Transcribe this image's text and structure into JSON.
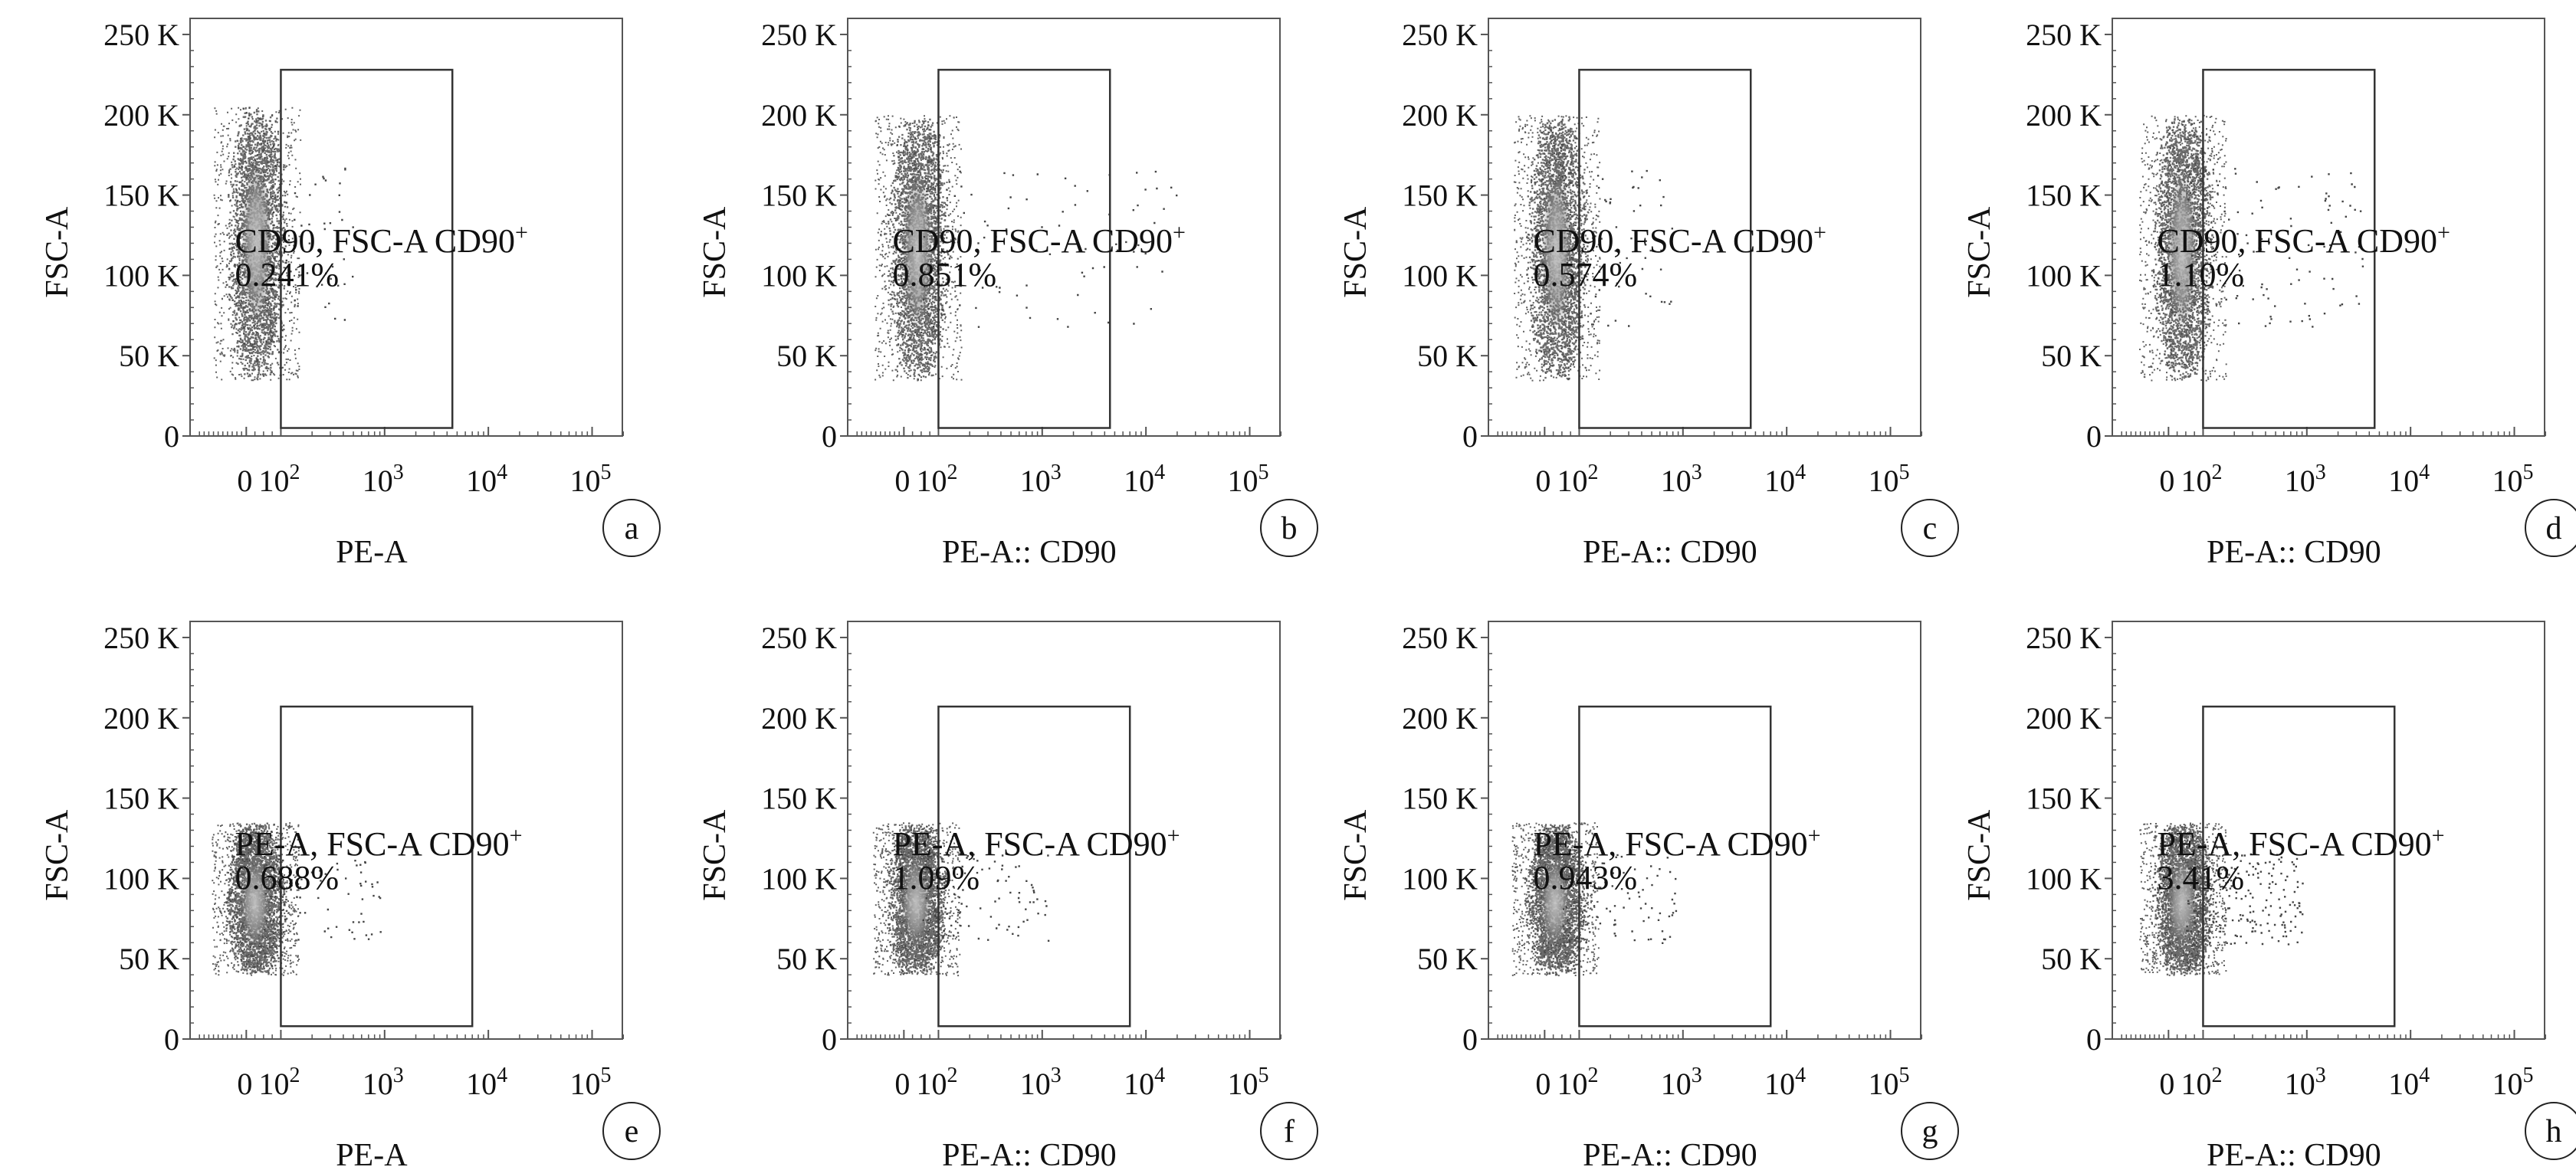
{
  "chart_data": [
    {
      "type": "scatter",
      "panel": "a",
      "letter": "a",
      "title": "",
      "xlabel": "PE-A",
      "ylabel": "FSC-A",
      "gate_label": "CD90, FSC-A CD90",
      "gate_sup": "+",
      "gate_percent": "0.241%",
      "gate_x": [
        100,
        4500
      ],
      "gate_y": [
        5000,
        228000
      ],
      "population": {
        "x_center": 30,
        "x_spread": 1.9,
        "y_range": [
          35000,
          205000
        ],
        "y_center": 120000,
        "sparse_points": 60,
        "tail_max": 500
      }
    },
    {
      "type": "scatter",
      "panel": "b",
      "letter": "b",
      "title": "",
      "xlabel": "PE-A:: CD90",
      "ylabel": "FSC-A",
      "gate_label": "CD90, FSC-A CD90",
      "gate_sup": "+",
      "gate_percent": "0.851%",
      "gate_x": [
        100,
        4500
      ],
      "gate_y": [
        5000,
        228000
      ],
      "population": {
        "x_center": 40,
        "x_spread": 2.2,
        "y_range": [
          35000,
          200000
        ],
        "y_center": 115000,
        "sparse_points": 90,
        "tail_max": 20000
      }
    },
    {
      "type": "scatter",
      "panel": "c",
      "letter": "c",
      "title": "",
      "xlabel": "PE-A:: CD90",
      "ylabel": "FSC-A",
      "gate_label": "CD90, FSC-A CD90",
      "gate_sup": "+",
      "gate_percent": "0.574%",
      "gate_x": [
        100,
        4500
      ],
      "gate_y": [
        5000,
        228000
      ],
      "population": {
        "x_center": 35,
        "x_spread": 2.0,
        "y_range": [
          35000,
          200000
        ],
        "y_center": 115000,
        "sparse_points": 70,
        "tail_max": 800
      }
    },
    {
      "type": "scatter",
      "panel": "d",
      "letter": "d",
      "title": "",
      "xlabel": "PE-A:: CD90",
      "ylabel": "FSC-A",
      "gate_label": "CD90, FSC-A CD90",
      "gate_sup": "+",
      "gate_percent": "1.10%",
      "gate_x": [
        100,
        4500
      ],
      "gate_y": [
        5000,
        228000
      ],
      "population": {
        "x_center": 40,
        "x_spread": 2.3,
        "y_range": [
          35000,
          200000
        ],
        "y_center": 115000,
        "sparse_points": 110,
        "tail_max": 3500
      }
    },
    {
      "type": "scatter",
      "panel": "e",
      "letter": "e",
      "title": "",
      "xlabel": "PE-A",
      "ylabel": "FSC-A",
      "gate_label": "PE-A, FSC-A CD90",
      "gate_sup": "+",
      "gate_percent": "0.688%",
      "gate_x": [
        100,
        7000
      ],
      "gate_y": [
        8000,
        207000
      ],
      "population": {
        "x_center": 25,
        "x_spread": 1.8,
        "y_range": [
          40000,
          135000
        ],
        "y_center": 85000,
        "sparse_points": 80,
        "tail_max": 900
      }
    },
    {
      "type": "scatter",
      "panel": "f",
      "letter": "f",
      "title": "",
      "xlabel": "PE-A:: CD90",
      "ylabel": "FSC-A",
      "gate_label": "PE-A, FSC-A CD90",
      "gate_sup": "+",
      "gate_percent": "1.09%",
      "gate_x": [
        100,
        7000
      ],
      "gate_y": [
        8000,
        207000
      ],
      "population": {
        "x_center": 35,
        "x_spread": 2.1,
        "y_range": [
          40000,
          135000
        ],
        "y_center": 85000,
        "sparse_points": 110,
        "tail_max": 1200
      }
    },
    {
      "type": "scatter",
      "panel": "g",
      "letter": "g",
      "title": "",
      "xlabel": "PE-A:: CD90",
      "ylabel": "FSC-A",
      "gate_label": "PE-A, FSC-A CD90",
      "gate_sup": "+",
      "gate_percent": "0.943%",
      "gate_x": [
        100,
        7000
      ],
      "gate_y": [
        8000,
        207000
      ],
      "population": {
        "x_center": 30,
        "x_spread": 2.0,
        "y_range": [
          40000,
          135000
        ],
        "y_center": 85000,
        "sparse_points": 90,
        "tail_max": 900
      }
    },
    {
      "type": "scatter",
      "panel": "h",
      "letter": "h",
      "title": "",
      "xlabel": "PE-A:: CD90",
      "ylabel": "FSC-A",
      "gate_label": "PE-A, FSC-A CD90",
      "gate_sup": "+",
      "gate_percent": "3.41%",
      "gate_x": [
        100,
        7000
      ],
      "gate_y": [
        8000,
        207000
      ],
      "population": {
        "x_center": 40,
        "x_spread": 2.5,
        "y_range": [
          40000,
          135000
        ],
        "y_center": 85000,
        "sparse_points": 220,
        "tail_max": 900
      }
    }
  ],
  "axes": {
    "y_ticks": [
      0,
      50000,
      100000,
      150000,
      200000,
      250000
    ],
    "y_tick_labels": [
      "0",
      "50 K",
      "100 K",
      "150 K",
      "200 K",
      "250 K"
    ],
    "y_range": [
      0,
      260000
    ],
    "x_scale": "biexponential",
    "x_ticks": [
      0,
      100,
      1000,
      10000,
      100000
    ],
    "x_tick_labels": [
      {
        "base": "0",
        "exp": ""
      },
      {
        "base": "10",
        "exp": "2"
      },
      {
        "base": "10",
        "exp": "3"
      },
      {
        "base": "10",
        "exp": "4"
      },
      {
        "base": "10",
        "exp": "5"
      }
    ],
    "grid": false
  },
  "colors": {
    "frame": "#555555",
    "gate": "#333333",
    "dots_sparse": "#444444",
    "dots_dense": "#6a6a6a",
    "core": "#a8a8a8",
    "text": "#111111"
  }
}
